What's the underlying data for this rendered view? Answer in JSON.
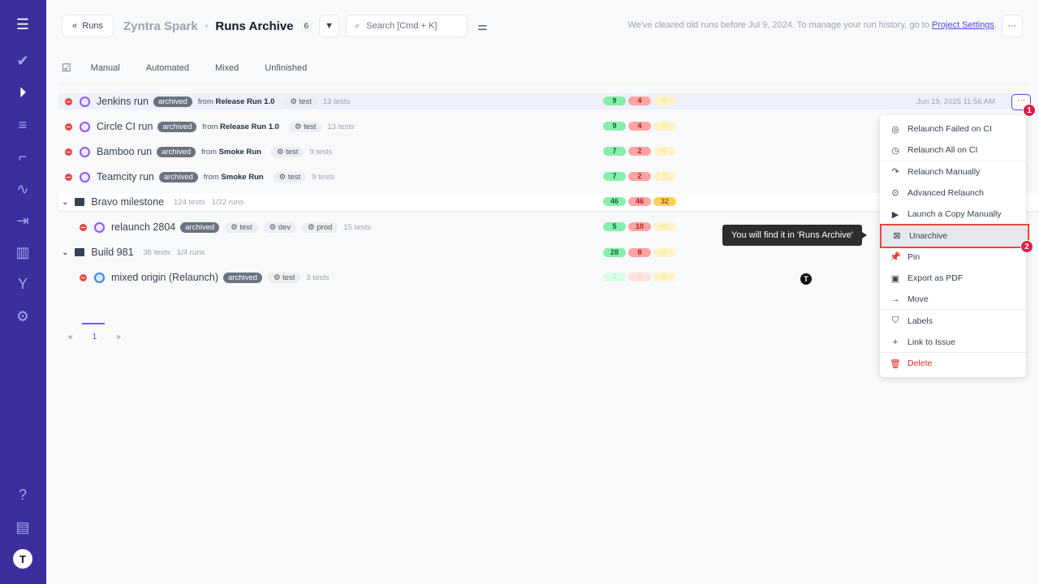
{
  "sidebar": {
    "items": [
      "menu-icon",
      "check-icon",
      "play-circle-icon",
      "list-check-icon",
      "steps-icon",
      "pulse-icon",
      "import-icon",
      "chart-icon",
      "branch-icon",
      "gear-icon"
    ],
    "bottom": [
      "help-icon",
      "folders-icon",
      "logo-icon"
    ]
  },
  "header": {
    "back_label": "Runs",
    "project": "Zyntra Spark",
    "title": "Runs Archive",
    "count": "6",
    "search_placeholder": "Search [Cmd + K]",
    "notice": "We've cleared old runs before Jul 9, 2024. To manage your run history, go to",
    "notice_link": "Project Settings",
    "notice_end": "."
  },
  "tabs": [
    "Manual",
    "Automated",
    "Mixed",
    "Unfinished"
  ],
  "rows": [
    {
      "name": "Jenkins run",
      "badge": "archived",
      "from": "from",
      "source": "Release Run 1.0",
      "tags": [
        "test"
      ],
      "tests": "13 tests",
      "passed": "9",
      "failed": "4",
      "skipped": "0",
      "date": "Jun 19, 2025 11:56 AM"
    },
    {
      "name": "Circle CI run",
      "badge": "archived",
      "from": "from",
      "source": "Release Run 1.0",
      "tags": [
        "test"
      ],
      "tests": "13 tests",
      "passed": "9",
      "failed": "4",
      "skipped": "0"
    },
    {
      "name": "Bamboo run",
      "badge": "archived",
      "from": "from",
      "source": "Smoke Run",
      "tags": [
        "test"
      ],
      "tests": "9 tests",
      "passed": "7",
      "failed": "2",
      "skipped": "0"
    },
    {
      "name": "Teamcity run",
      "badge": "archived",
      "from": "from",
      "source": "Smoke Run",
      "tags": [
        "test"
      ],
      "tests": "9 tests",
      "passed": "7",
      "failed": "2",
      "skipped": "0"
    }
  ],
  "groups": [
    {
      "name": "Bravo milestone",
      "tests": "124 tests",
      "runs": "1/32 runs",
      "passed": "46",
      "failed": "46",
      "skipped": "32",
      "child": {
        "name": "relaunch 2804",
        "badge": "archived",
        "tags": [
          "test",
          "dev",
          "prod"
        ],
        "tests": "15 tests",
        "passed": "5",
        "failed": "10",
        "skipped": "0"
      }
    },
    {
      "name": "Build 981",
      "tests": "36 tests",
      "runs": "1/4 runs",
      "passed": "28",
      "failed": "8",
      "skipped": "0",
      "child": {
        "name": "mixed origin (Relaunch)",
        "badge": "archived",
        "tags": [
          "test"
        ],
        "tests": "3 tests",
        "passed": "0",
        "failed": "0",
        "skipped": "0"
      }
    }
  ],
  "menu": [
    "Relaunch Failed on CI",
    "Relaunch All on CI",
    "Relaunch Manually",
    "Advanced Relaunch",
    "Launch a Copy Manually",
    "Unarchive",
    "Pin",
    "Export as PDF",
    "Move",
    "Labels",
    "Link to Issue",
    "Delete"
  ],
  "tooltip": "You will find it in 'Runs Archive'",
  "annotations": [
    "1",
    "2"
  ],
  "pagination": {
    "prev": "«",
    "page": "1",
    "next": "»"
  },
  "colors": {
    "sidebar": "#3a2f9c",
    "accent": "#4f46e5",
    "danger": "#e11d48"
  }
}
